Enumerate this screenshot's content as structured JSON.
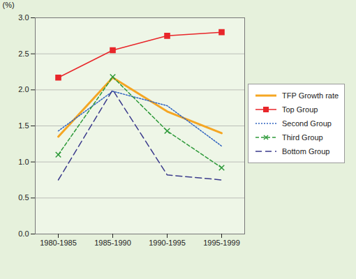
{
  "chart_data": {
    "type": "line",
    "ylabel": "(%)",
    "categories": [
      "1980-1985",
      "1985-1990",
      "1990-1995",
      "1995-1999"
    ],
    "series": [
      {
        "name": "TFP Growth rate",
        "color": "#f5a623",
        "line_style": "solid",
        "values": [
          1.35,
          2.17,
          1.7,
          1.4
        ]
      },
      {
        "name": "Top Group",
        "color": "#e8262a",
        "line_style": "solid",
        "marker": "square",
        "values": [
          2.17,
          2.55,
          2.75,
          2.8
        ]
      },
      {
        "name": "Second Group",
        "color": "#2f63c0",
        "line_style": "dotted",
        "values": [
          1.43,
          1.98,
          1.78,
          1.22
        ]
      },
      {
        "name": "Third Group",
        "color": "#2e9a3a",
        "line_style": "dashed",
        "marker": "x",
        "values": [
          1.1,
          2.18,
          1.43,
          0.92
        ]
      },
      {
        "name": "Bottom Group",
        "color": "#3a3a8c",
        "line_style": "longdash",
        "values": [
          0.75,
          2.0,
          0.82,
          0.75
        ]
      }
    ],
    "ylim": [
      0,
      3
    ],
    "yticks": [
      {
        "value": 0,
        "label": "0.0"
      },
      0.5,
      {
        "value": 1,
        "label": "1.0"
      },
      1.5,
      {
        "value": 2,
        "label": "2.0"
      },
      2.5,
      {
        "value": 3,
        "label": "3.0"
      }
    ],
    "grid": true,
    "legend": "right"
  }
}
